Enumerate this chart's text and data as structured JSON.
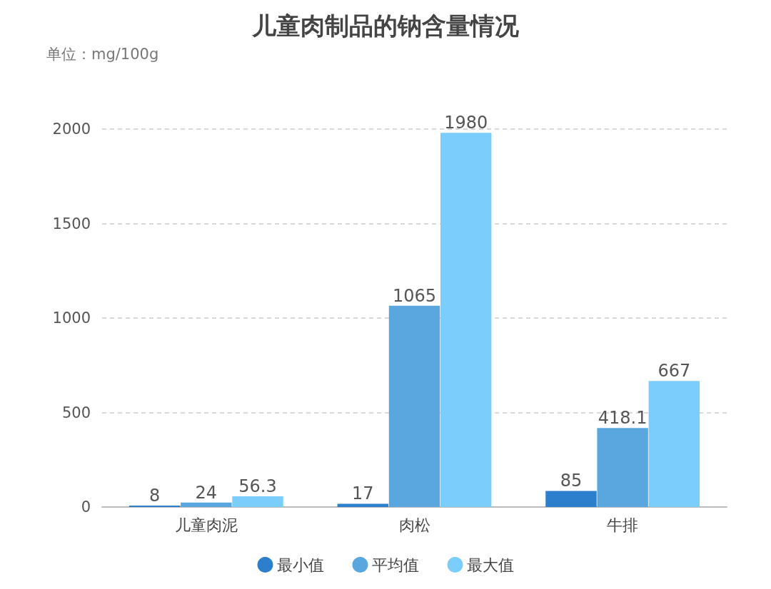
{
  "chart_data": {
    "type": "bar",
    "title": "儿童肉制品的钠含量情况",
    "ylabel": "单位：mg/100g",
    "categories": [
      "儿童肉泥",
      "肉松",
      "牛排"
    ],
    "series": [
      {
        "name": "最小值",
        "color": "#2b7fcc",
        "values": [
          8,
          17,
          85
        ]
      },
      {
        "name": "平均值",
        "color": "#5aa7e0",
        "values": [
          24,
          1065,
          418.1
        ]
      },
      {
        "name": "最大值",
        "color": "#7bcefb",
        "values": [
          56.3,
          1980,
          667
        ]
      }
    ],
    "ylim": [
      0,
      2000
    ],
    "yticks": [
      0,
      500,
      1000,
      1500,
      2000
    ],
    "grid": "y",
    "legend": "bottom",
    "data_labels": true
  }
}
